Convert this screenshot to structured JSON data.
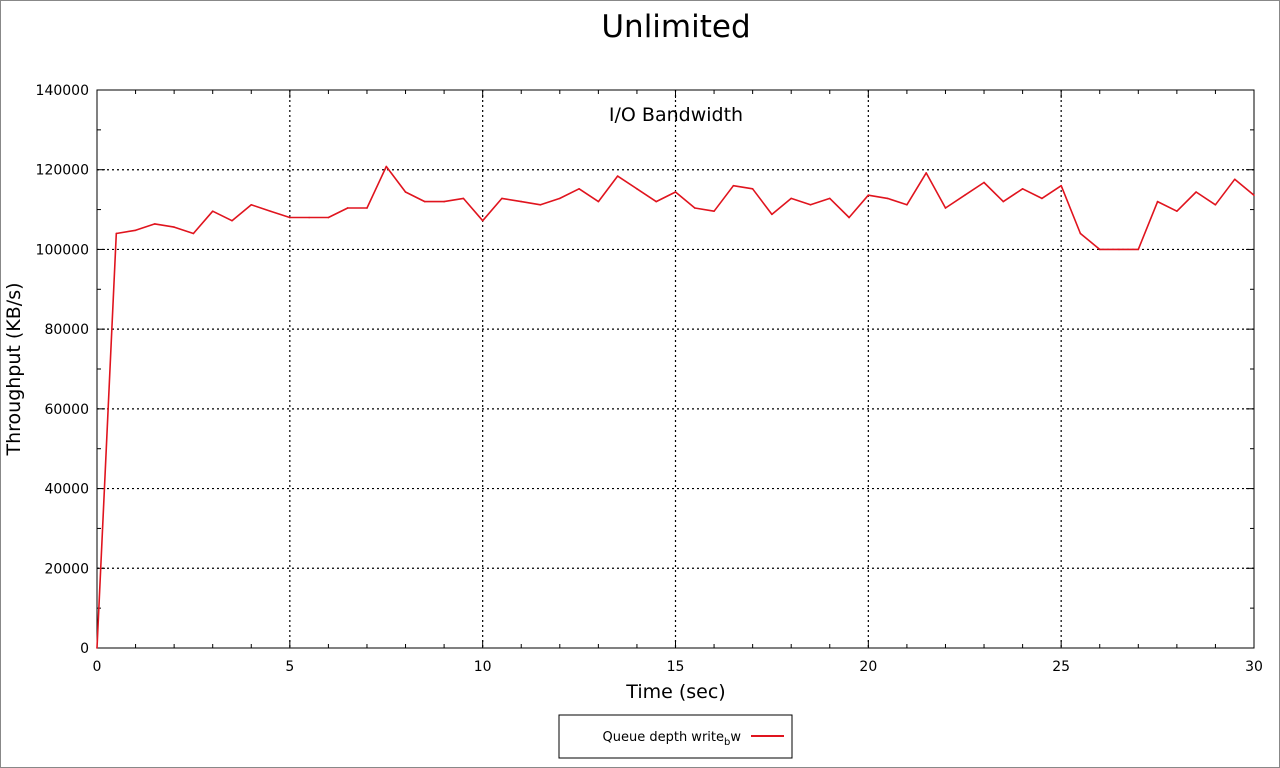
{
  "chart_data": {
    "type": "line",
    "title": "Unlimited",
    "subtitle": "I/O Bandwidth",
    "xlabel": "Time (sec)",
    "ylabel": "Throughput (KB/s)",
    "xlim": [
      0,
      30
    ],
    "ylim": [
      0,
      140000
    ],
    "xticks": [
      0,
      5,
      10,
      15,
      20,
      25,
      30
    ],
    "yticks": [
      0,
      20000,
      40000,
      60000,
      80000,
      100000,
      120000,
      140000
    ],
    "grid": true,
    "legend_position": "bottom-center",
    "colors": {
      "series": "#e0141e",
      "grid": "#000000",
      "axis": "#000000"
    },
    "series": [
      {
        "name_main": "Queue depth write",
        "name_sub": "b",
        "name_tail": "w",
        "x": [
          0,
          0.5,
          1,
          1.5,
          2,
          2.5,
          3,
          3.5,
          4,
          4.5,
          5,
          5.5,
          6,
          6.5,
          7,
          7.5,
          8,
          8.5,
          9,
          9.5,
          10,
          10.5,
          11,
          11.5,
          12,
          12.5,
          13,
          13.5,
          14,
          14.5,
          15,
          15.5,
          16,
          16.5,
          17,
          17.5,
          18,
          18.5,
          19,
          19.5,
          20,
          20.5,
          21,
          21.5,
          22,
          22.5,
          23,
          23.5,
          24,
          24.5,
          25,
          25.5,
          26,
          26.5,
          27,
          27.5,
          28,
          28.5,
          29,
          29.5,
          30
        ],
        "values": [
          0,
          104000,
          104800,
          106400,
          105600,
          104000,
          109600,
          107200,
          111200,
          109600,
          108000,
          108000,
          108000,
          110400,
          110400,
          120800,
          114400,
          112000,
          112000,
          112800,
          107200,
          112800,
          112000,
          111200,
          112800,
          115200,
          112000,
          118400,
          115200,
          112000,
          114400,
          110400,
          109600,
          116000,
          115200,
          108800,
          112800,
          111200,
          112800,
          108000,
          113600,
          112800,
          111200,
          119200,
          110400,
          113600,
          116800,
          112000,
          115200,
          112800,
          116000,
          104000,
          100000,
          100000,
          100000,
          112000,
          109600,
          114400,
          111200,
          117600,
          113600
        ]
      }
    ]
  }
}
